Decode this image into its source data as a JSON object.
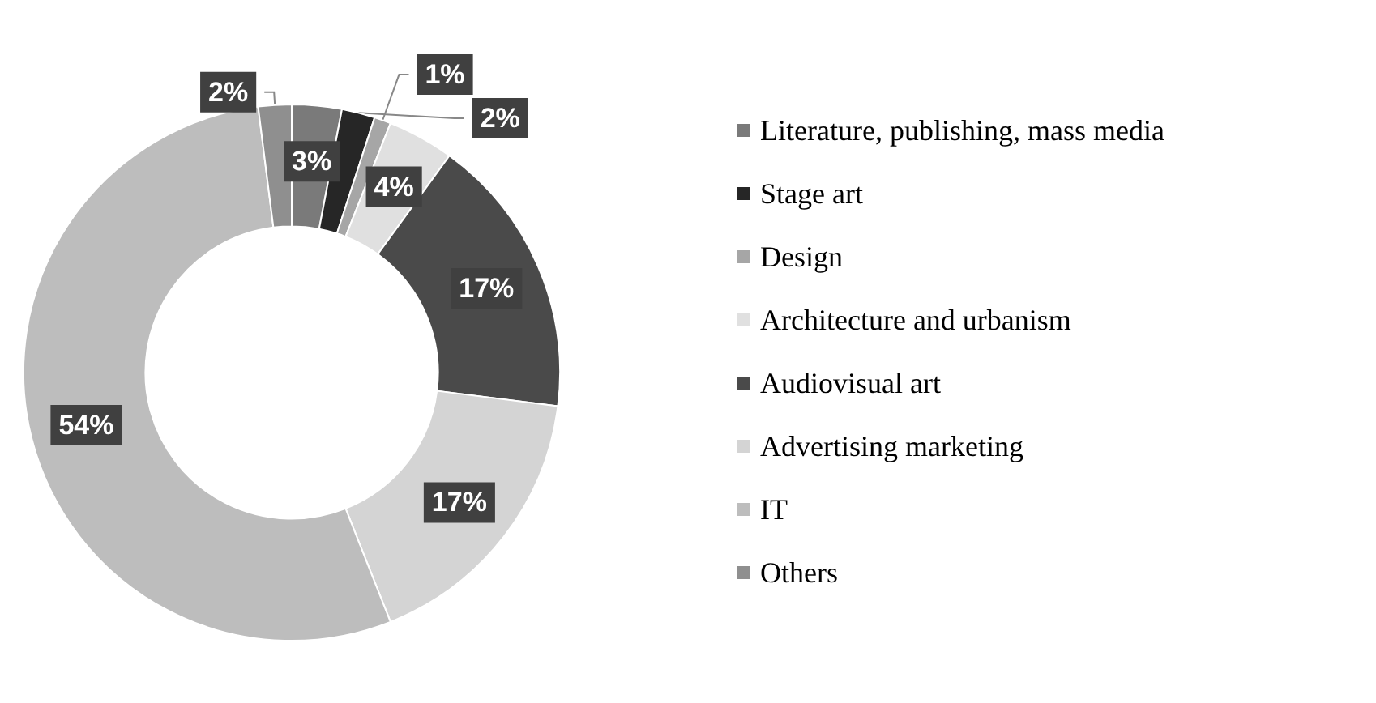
{
  "chart_data": {
    "type": "donut",
    "categories": [
      "Literature, publishing, mass media",
      "Stage art",
      "Design",
      "Architecture and urbanism",
      "Audiovisual art",
      "Advertising marketing",
      "IT",
      "Others"
    ],
    "values": [
      3,
      2,
      1,
      4,
      17,
      17,
      54,
      2
    ],
    "value_labels": [
      "3%",
      "2%",
      "1%",
      "4%",
      "17%",
      "17%",
      "54%",
      "2%"
    ],
    "colors": [
      "#7a7a7a",
      "#262626",
      "#a6a6a6",
      "#e0e0e0",
      "#4a4a4a",
      "#d4d4d4",
      "#bdbdbd",
      "#8f8f8f"
    ],
    "legend": "right"
  }
}
